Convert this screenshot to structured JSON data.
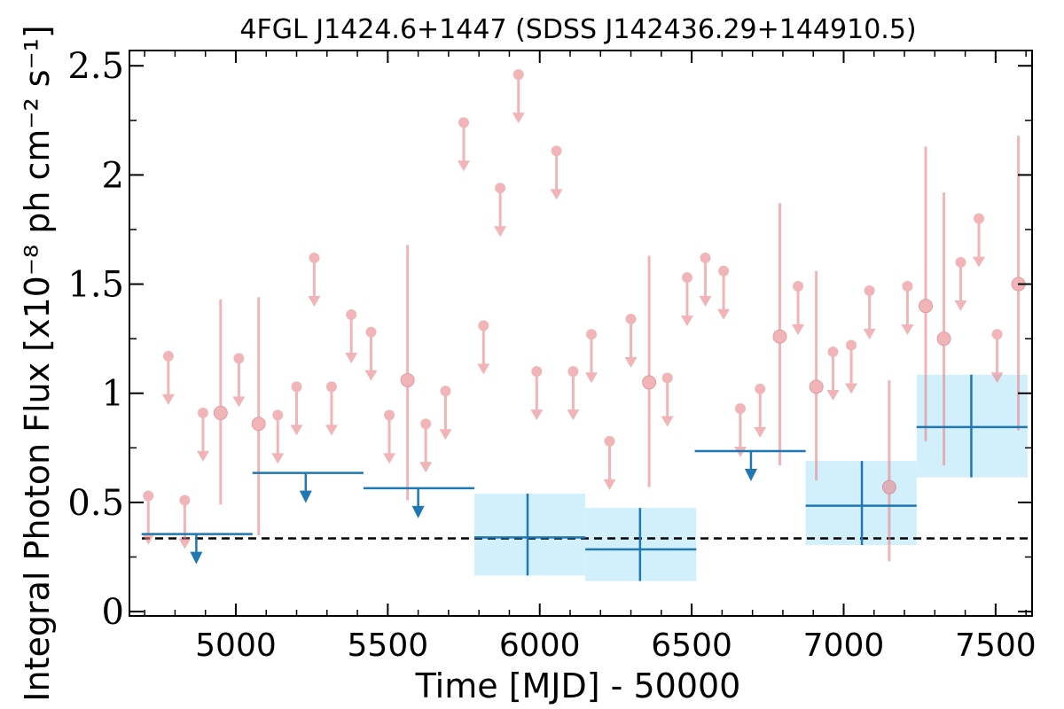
{
  "chart_data": {
    "type": "scatter",
    "title": "4FGL J1424.6+1447 (SDSS J142436.29+144910.5)",
    "xlabel": "Time [MJD] - 50000",
    "ylabel": "Integral Photon Flux [x10⁻⁸ ph cm⁻² s⁻¹]",
    "xlim": [
      4650,
      7620
    ],
    "ylim": [
      -0.02,
      2.57
    ],
    "xticks": [
      5000,
      5500,
      6000,
      6500,
      7000,
      7500
    ],
    "xtick_labels": [
      "5000",
      "5500",
      "6000",
      "6500",
      "7000",
      "7500"
    ],
    "yticks": [
      0,
      0.5,
      1,
      1.5,
      2,
      2.5
    ],
    "ytick_labels": [
      "0",
      "0.5",
      "1",
      "1.5",
      "2",
      "2.5"
    ],
    "reference_line": {
      "y": 0.335,
      "style": "dashed",
      "color": "#000000"
    },
    "colors": {
      "short_bins": "#e8858a",
      "long_bins": "#1f77b4",
      "long_bins_fill": "#cdeefc"
    },
    "short_bin_upper_limits": [
      {
        "x": 4712,
        "y": 0.53
      },
      {
        "x": 4778,
        "y": 1.17
      },
      {
        "x": 4832,
        "y": 0.51
      },
      {
        "x": 4892,
        "y": 0.91
      },
      {
        "x": 5010,
        "y": 1.16
      },
      {
        "x": 5138,
        "y": 0.9
      },
      {
        "x": 5200,
        "y": 1.03
      },
      {
        "x": 5258,
        "y": 1.62
      },
      {
        "x": 5315,
        "y": 1.03
      },
      {
        "x": 5380,
        "y": 1.36
      },
      {
        "x": 5445,
        "y": 1.28
      },
      {
        "x": 5505,
        "y": 0.9
      },
      {
        "x": 5625,
        "y": 0.86
      },
      {
        "x": 5690,
        "y": 1.01
      },
      {
        "x": 5750,
        "y": 2.24
      },
      {
        "x": 5815,
        "y": 1.31
      },
      {
        "x": 5870,
        "y": 1.94
      },
      {
        "x": 5930,
        "y": 2.46
      },
      {
        "x": 5990,
        "y": 1.1
      },
      {
        "x": 6055,
        "y": 2.11
      },
      {
        "x": 6110,
        "y": 1.1
      },
      {
        "x": 6170,
        "y": 1.27
      },
      {
        "x": 6230,
        "y": 0.78
      },
      {
        "x": 6300,
        "y": 1.34
      },
      {
        "x": 6420,
        "y": 1.07
      },
      {
        "x": 6485,
        "y": 1.53
      },
      {
        "x": 6545,
        "y": 1.62
      },
      {
        "x": 6605,
        "y": 1.56
      },
      {
        "x": 6660,
        "y": 0.93
      },
      {
        "x": 6725,
        "y": 1.02
      },
      {
        "x": 6850,
        "y": 1.49
      },
      {
        "x": 6965,
        "y": 1.19
      },
      {
        "x": 7025,
        "y": 1.22
      },
      {
        "x": 7085,
        "y": 1.47
      },
      {
        "x": 7210,
        "y": 1.49
      },
      {
        "x": 7385,
        "y": 1.6
      },
      {
        "x": 7445,
        "y": 1.8
      },
      {
        "x": 7505,
        "y": 1.27
      }
    ],
    "short_bin_detections": [
      {
        "x": 4950,
        "y": 0.91,
        "ylow": 0.49,
        "yhigh": 1.43
      },
      {
        "x": 5075,
        "y": 0.86,
        "ylow": 0.35,
        "yhigh": 1.44
      },
      {
        "x": 5565,
        "y": 1.06,
        "ylow": 0.51,
        "yhigh": 1.68
      },
      {
        "x": 6360,
        "y": 1.05,
        "ylow": 0.57,
        "yhigh": 1.63
      },
      {
        "x": 6790,
        "y": 1.26,
        "ylow": 0.67,
        "yhigh": 1.87
      },
      {
        "x": 6910,
        "y": 1.03,
        "ylow": 0.6,
        "yhigh": 1.56
      },
      {
        "x": 7150,
        "y": 0.57,
        "ylow": 0.23,
        "yhigh": 1.06
      },
      {
        "x": 7270,
        "y": 1.4,
        "ylow": 0.78,
        "yhigh": 2.13
      },
      {
        "x": 7330,
        "y": 1.25,
        "ylow": 0.67,
        "yhigh": 1.92
      },
      {
        "x": 7575,
        "y": 1.5,
        "ylow": 0.83,
        "yhigh": 2.18
      }
    ],
    "long_bin_upper_limits": [
      {
        "x0": 4690,
        "x1": 5055,
        "y": 0.355,
        "xarrow": 4870
      },
      {
        "x0": 5055,
        "x1": 5420,
        "y": 0.635,
        "xarrow": 5230
      },
      {
        "x0": 5420,
        "x1": 5785,
        "y": 0.565,
        "xarrow": 5600
      },
      {
        "x0": 6510,
        "x1": 6875,
        "y": 0.735,
        "xarrow": 6695
      }
    ],
    "long_bin_detections": [
      {
        "x0": 5785,
        "x1": 6150,
        "x": 5960,
        "y": 0.34,
        "ylow": 0.165,
        "yhigh": 0.54
      },
      {
        "x0": 6150,
        "x1": 6515,
        "x": 6330,
        "y": 0.285,
        "ylow": 0.14,
        "yhigh": 0.475
      },
      {
        "x0": 6875,
        "x1": 7240,
        "x": 7060,
        "y": 0.485,
        "ylow": 0.305,
        "yhigh": 0.69
      },
      {
        "x0": 7240,
        "x1": 7605,
        "x": 7420,
        "y": 0.845,
        "ylow": 0.615,
        "yhigh": 1.085
      }
    ]
  }
}
